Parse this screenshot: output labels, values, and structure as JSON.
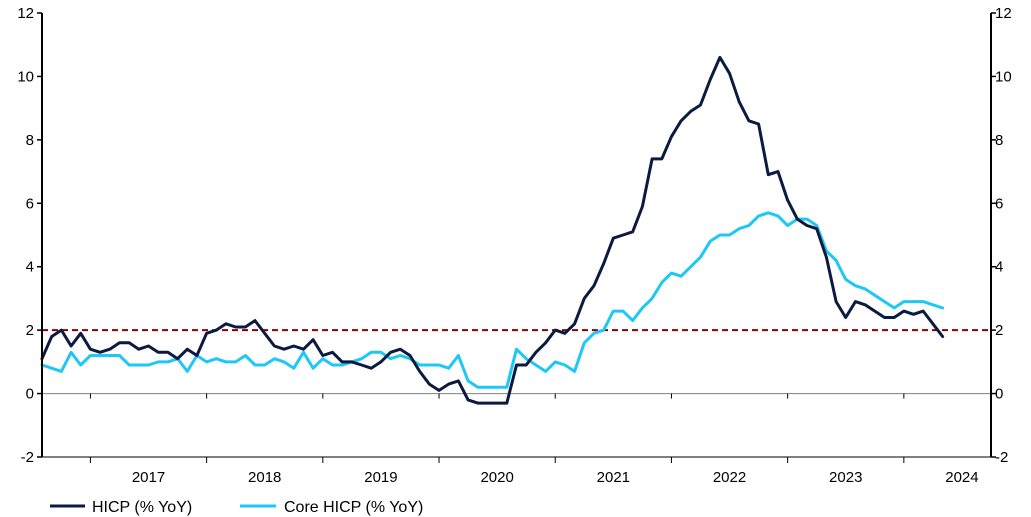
{
  "chart_data": {
    "type": "line",
    "title": "",
    "xlabel": "",
    "ylabel": "",
    "ylim": [
      -2,
      12
    ],
    "y_ticks": [
      -2,
      0,
      2,
      4,
      6,
      8,
      10,
      12
    ],
    "y_tick_labels": [
      "-2",
      "0",
      "2",
      "4",
      "6",
      "8",
      "10",
      "12"
    ],
    "x_tick_labels": [
      "2017",
      "2018",
      "2019",
      "2020",
      "2021",
      "2022",
      "2023",
      "2024"
    ],
    "x_start": "2016-08",
    "x_end": "2024-10",
    "grid": false,
    "reference_lines": [
      {
        "y": 0,
        "style": "solid",
        "color": "#808080"
      },
      {
        "y": 2,
        "style": "dashed",
        "color": "#8b0000"
      }
    ],
    "legend": {
      "position": "bottom-left"
    },
    "series": [
      {
        "name": "HICP (% YoY)",
        "color": "#0b1a40",
        "values": [
          1.1,
          1.8,
          2.0,
          1.5,
          1.9,
          1.4,
          1.3,
          1.4,
          1.6,
          1.6,
          1.4,
          1.5,
          1.3,
          1.3,
          1.1,
          1.4,
          1.2,
          1.9,
          2.0,
          2.2,
          2.1,
          2.1,
          2.3,
          1.9,
          1.5,
          1.4,
          1.5,
          1.4,
          1.7,
          1.2,
          1.3,
          1.0,
          1.0,
          0.9,
          0.8,
          1.0,
          1.3,
          1.4,
          1.2,
          0.7,
          0.3,
          0.1,
          0.3,
          0.4,
          -0.2,
          -0.3,
          -0.3,
          -0.3,
          -0.3,
          0.9,
          0.9,
          1.3,
          1.6,
          2.0,
          1.9,
          2.2,
          3.0,
          3.4,
          4.1,
          4.9,
          5.0,
          5.1,
          5.9,
          7.4,
          7.4,
          8.1,
          8.6,
          8.9,
          9.1,
          9.9,
          10.6,
          10.1,
          9.2,
          8.6,
          8.5,
          6.9,
          7.0,
          6.1,
          5.5,
          5.3,
          5.2,
          4.3,
          2.9,
          2.4,
          2.9,
          2.8,
          2.6,
          2.4,
          2.4,
          2.6,
          2.5,
          2.6,
          2.2,
          1.8
        ]
      },
      {
        "name": "Core HICP (% YoY)",
        "color": "#1ec8f5",
        "values": [
          0.9,
          0.8,
          0.7,
          1.3,
          0.9,
          1.2,
          1.2,
          1.2,
          1.2,
          0.9,
          0.9,
          0.9,
          1.0,
          1.0,
          1.1,
          0.7,
          1.2,
          1.0,
          1.1,
          1.0,
          1.0,
          1.2,
          0.9,
          0.9,
          1.1,
          1.0,
          0.8,
          1.3,
          0.8,
          1.1,
          0.9,
          0.9,
          1.0,
          1.1,
          1.3,
          1.3,
          1.1,
          1.2,
          1.1,
          0.9,
          0.9,
          0.9,
          0.8,
          1.2,
          0.4,
          0.2,
          0.2,
          0.2,
          0.2,
          1.4,
          1.1,
          0.9,
          0.7,
          1.0,
          0.9,
          0.7,
          1.6,
          1.9,
          2.0,
          2.6,
          2.6,
          2.3,
          2.7,
          3.0,
          3.5,
          3.8,
          3.7,
          4.0,
          4.3,
          4.8,
          5.0,
          5.0,
          5.2,
          5.3,
          5.6,
          5.7,
          5.6,
          5.3,
          5.5,
          5.5,
          5.3,
          4.5,
          4.2,
          3.6,
          3.4,
          3.3,
          3.1,
          2.9,
          2.7,
          2.9,
          2.9,
          2.9,
          2.8,
          2.7
        ]
      }
    ]
  }
}
